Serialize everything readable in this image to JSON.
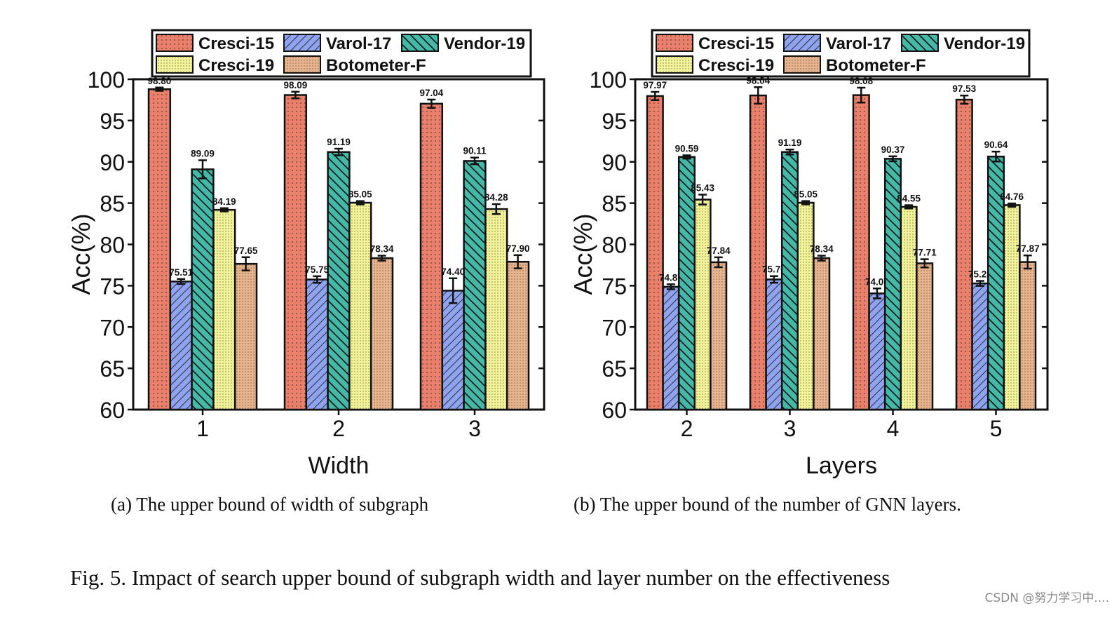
{
  "figure_caption": "Fig. 5.  Impact of search upper bound of subgraph width and layer number on the effectiveness",
  "watermark": "CSDN @努力学习中....",
  "colors": {
    "Cresci-15": "#e8806b",
    "Varol-17": "#8fa3ee",
    "Vendor-19": "#45b8a8",
    "Cresci-19": "#f3f39a",
    "Botometer-F": "#e8b48e"
  },
  "chart_data": [
    {
      "type": "bar",
      "caption": "(a)  The upper bound of width of subgraph",
      "xlabel": "Width",
      "ylabel": "Acc(%)",
      "ylim": [
        60,
        100
      ],
      "yticks": [
        60,
        65,
        70,
        75,
        80,
        85,
        90,
        95,
        100
      ],
      "categories": [
        "1",
        "2",
        "3"
      ],
      "legend": [
        "Cresci-15",
        "Varol-17",
        "Vendor-19",
        "Cresci-19",
        "Botometer-F"
      ],
      "legend_position": "top",
      "series": [
        {
          "name": "Cresci-15",
          "values": [
            98.8,
            98.09,
            97.04
          ],
          "labels": [
            "98.80",
            "98.09",
            "97.04"
          ],
          "err": [
            0.2,
            0.4,
            0.5
          ]
        },
        {
          "name": "Varol-17",
          "values": [
            75.51,
            75.75,
            74.4
          ],
          "labels": [
            "75.51",
            "75.75",
            "74.40"
          ],
          "err": [
            0.3,
            0.4,
            1.5
          ]
        },
        {
          "name": "Vendor-19",
          "values": [
            89.09,
            91.19,
            90.11
          ],
          "labels": [
            "89.09",
            "91.19",
            "90.11"
          ],
          "err": [
            1.1,
            0.4,
            0.4
          ]
        },
        {
          "name": "Cresci-19",
          "values": [
            84.19,
            85.05,
            84.28
          ],
          "labels": [
            "84.19",
            "85.05",
            "84.28"
          ],
          "err": [
            0.2,
            0.2,
            0.6
          ]
        },
        {
          "name": "Botometer-F",
          "values": [
            77.65,
            78.34,
            77.9
          ],
          "labels": [
            "77.65",
            "78.34",
            "77.90"
          ],
          "err": [
            0.8,
            0.3,
            0.8
          ]
        }
      ]
    },
    {
      "type": "bar",
      "caption": "(b)  The upper bound of the number of GNN layers.",
      "xlabel": "Layers",
      "ylabel": "Acc(%)",
      "ylim": [
        60,
        100
      ],
      "yticks": [
        60,
        65,
        70,
        75,
        80,
        85,
        90,
        95,
        100
      ],
      "categories": [
        "2",
        "3",
        "4",
        "5"
      ],
      "legend": [
        "Cresci-15",
        "Varol-17",
        "Vendor-19",
        "Cresci-19",
        "Botometer-F"
      ],
      "legend_position": "top",
      "series": [
        {
          "name": "Cresci-15",
          "values": [
            97.97,
            98.04,
            98.08,
            97.53
          ],
          "labels": [
            "97.97",
            "98.04",
            "98.08",
            "97.53"
          ],
          "err": [
            0.5,
            1.0,
            0.9,
            0.5
          ]
        },
        {
          "name": "Varol-17",
          "values": [
            74.87,
            75.76,
            74.07,
            75.28
          ],
          "labels": [
            "74.87",
            "75.76",
            "74.07",
            "75.28"
          ],
          "err": [
            0.3,
            0.4,
            0.6,
            0.3
          ]
        },
        {
          "name": "Vendor-19",
          "values": [
            90.59,
            91.19,
            90.37,
            90.64
          ],
          "labels": [
            "90.59",
            "91.19",
            "90.37",
            "90.64"
          ],
          "err": [
            0.2,
            0.3,
            0.3,
            0.6
          ]
        },
        {
          "name": "Cresci-19",
          "values": [
            85.43,
            85.05,
            84.55,
            84.76
          ],
          "labels": [
            "85.43",
            "85.05",
            "84.55",
            "84.76"
          ],
          "err": [
            0.6,
            0.2,
            0.2,
            0.2
          ]
        },
        {
          "name": "Botometer-F",
          "values": [
            77.84,
            78.34,
            77.71,
            77.87
          ],
          "labels": [
            "77.84",
            "78.34",
            "77.71",
            "77.87"
          ],
          "err": [
            0.6,
            0.3,
            0.5,
            0.8
          ]
        }
      ]
    }
  ]
}
